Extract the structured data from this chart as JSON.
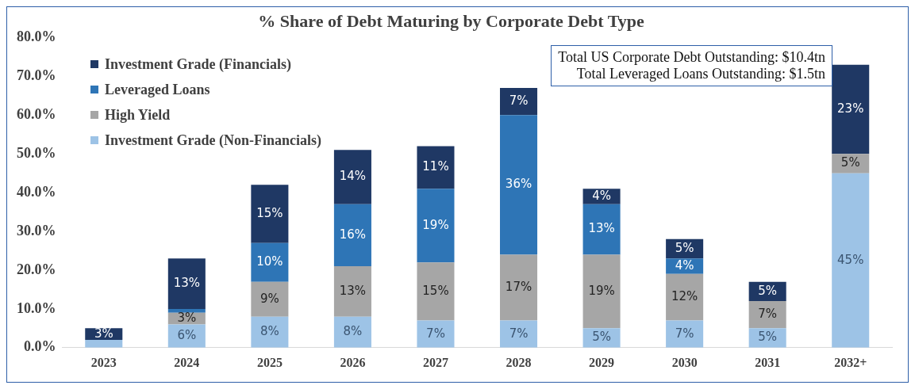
{
  "chart_data": {
    "type": "bar",
    "title": "% Share of Debt Maturing by Corporate Debt Type",
    "stacked": true,
    "legend": "top left",
    "grid": false,
    "categories": [
      "2023",
      "2024",
      "2025",
      "2026",
      "2027",
      "2028",
      "2029",
      "2030",
      "2031",
      "2032+"
    ],
    "ylim": [
      0,
      80
    ],
    "yticks": [
      {
        "value": 0,
        "label": "0.0%"
      },
      {
        "value": 10,
        "label": "10.0%"
      },
      {
        "value": 20,
        "label": "20.0%"
      },
      {
        "value": 30,
        "label": "30.0%"
      },
      {
        "value": 40,
        "label": "40.0%"
      },
      {
        "value": 50,
        "label": "50.0%"
      },
      {
        "value": 60,
        "label": "60.0%"
      },
      {
        "value": 70,
        "label": "70.0%"
      },
      {
        "value": 80,
        "label": "80.0%"
      }
    ],
    "series": [
      {
        "name": "Investment Grade (Non-Financials)",
        "color": "#9dc3e6",
        "values": [
          2,
          6,
          8,
          8,
          7,
          7,
          5,
          7,
          5,
          45
        ],
        "value_labels": [
          null,
          "6%",
          "8%",
          "8%",
          "7%",
          "7%",
          "5%",
          "7%",
          "5%",
          "45%"
        ]
      },
      {
        "name": "High Yield",
        "color": "#a6a6a6",
        "values": [
          0,
          3,
          9,
          13,
          15,
          17,
          19,
          12,
          7,
          5
        ],
        "value_labels": [
          null,
          "3%",
          "9%",
          "13%",
          "15%",
          "17%",
          "19%",
          "12%",
          "7%",
          "5%"
        ]
      },
      {
        "name": "Leveraged Loans",
        "color": "#2e75b6",
        "values": [
          0,
          1,
          10,
          16,
          19,
          36,
          13,
          4,
          0,
          0
        ],
        "value_labels": [
          null,
          null,
          "10%",
          "16%",
          "19%",
          "36%",
          "13%",
          "4%",
          null,
          null
        ]
      },
      {
        "name": "Investment Grade (Financials)",
        "color": "#1f3864",
        "values": [
          3,
          13,
          15,
          14,
          11,
          7,
          4,
          5,
          5,
          23
        ],
        "value_labels": [
          "3%",
          "13%",
          "15%",
          "14%",
          "11%",
          "7%",
          "4%",
          "5%",
          "5%",
          "23%"
        ]
      }
    ],
    "annotations": [
      "Total US Corporate Debt Outstanding: $10.4tn",
      "Total Leveraged Loans Outstanding: $1.5tn"
    ]
  }
}
